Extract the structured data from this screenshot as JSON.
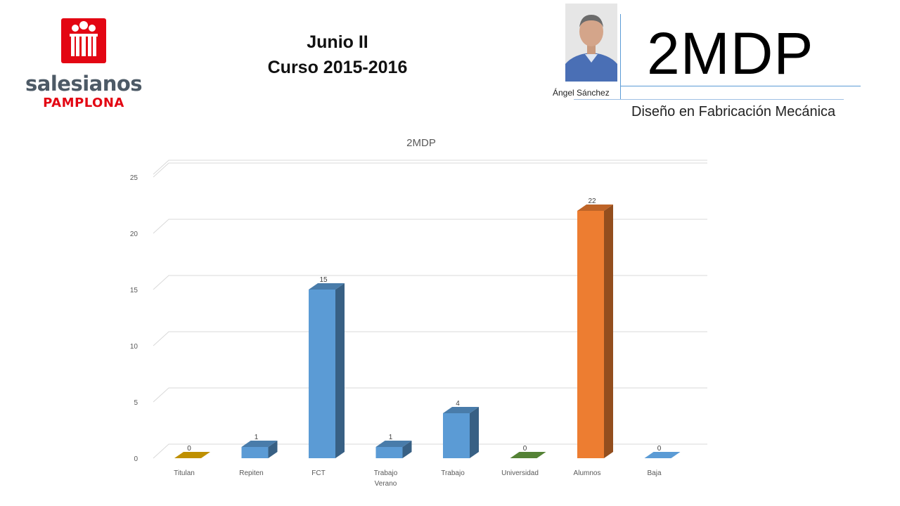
{
  "logo": {
    "name": "salesianos",
    "sub": "PAMPLONA",
    "color": "#e30613"
  },
  "header": {
    "line1": "Junio II",
    "line2": "Curso 2015-2016"
  },
  "author": {
    "name": "Ángel Sánchez"
  },
  "group": {
    "code": "2MDP",
    "program": "Diseño en Fabricación Mecánica"
  },
  "chart_data": {
    "type": "bar",
    "title": "2MDP",
    "xlabel": "",
    "ylabel": "",
    "categories": [
      "Titulan",
      "Repiten",
      "FCT",
      "Trabajo Verano",
      "Trabajo",
      "Universidad",
      "Alumnos",
      "Baja"
    ],
    "values": [
      0,
      1,
      15,
      1,
      4,
      0,
      22,
      0
    ],
    "colors": [
      "#bf9000",
      "#5b9bd5",
      "#5b9bd5",
      "#5b9bd5",
      "#5b9bd5",
      "#548235",
      "#ed7d31",
      "#5b9bd5"
    ],
    "ylim": [
      0,
      25
    ],
    "yticks": [
      0,
      5,
      10,
      15,
      20,
      25
    ],
    "grid": true,
    "legend": "none",
    "style": "3d-columns"
  }
}
